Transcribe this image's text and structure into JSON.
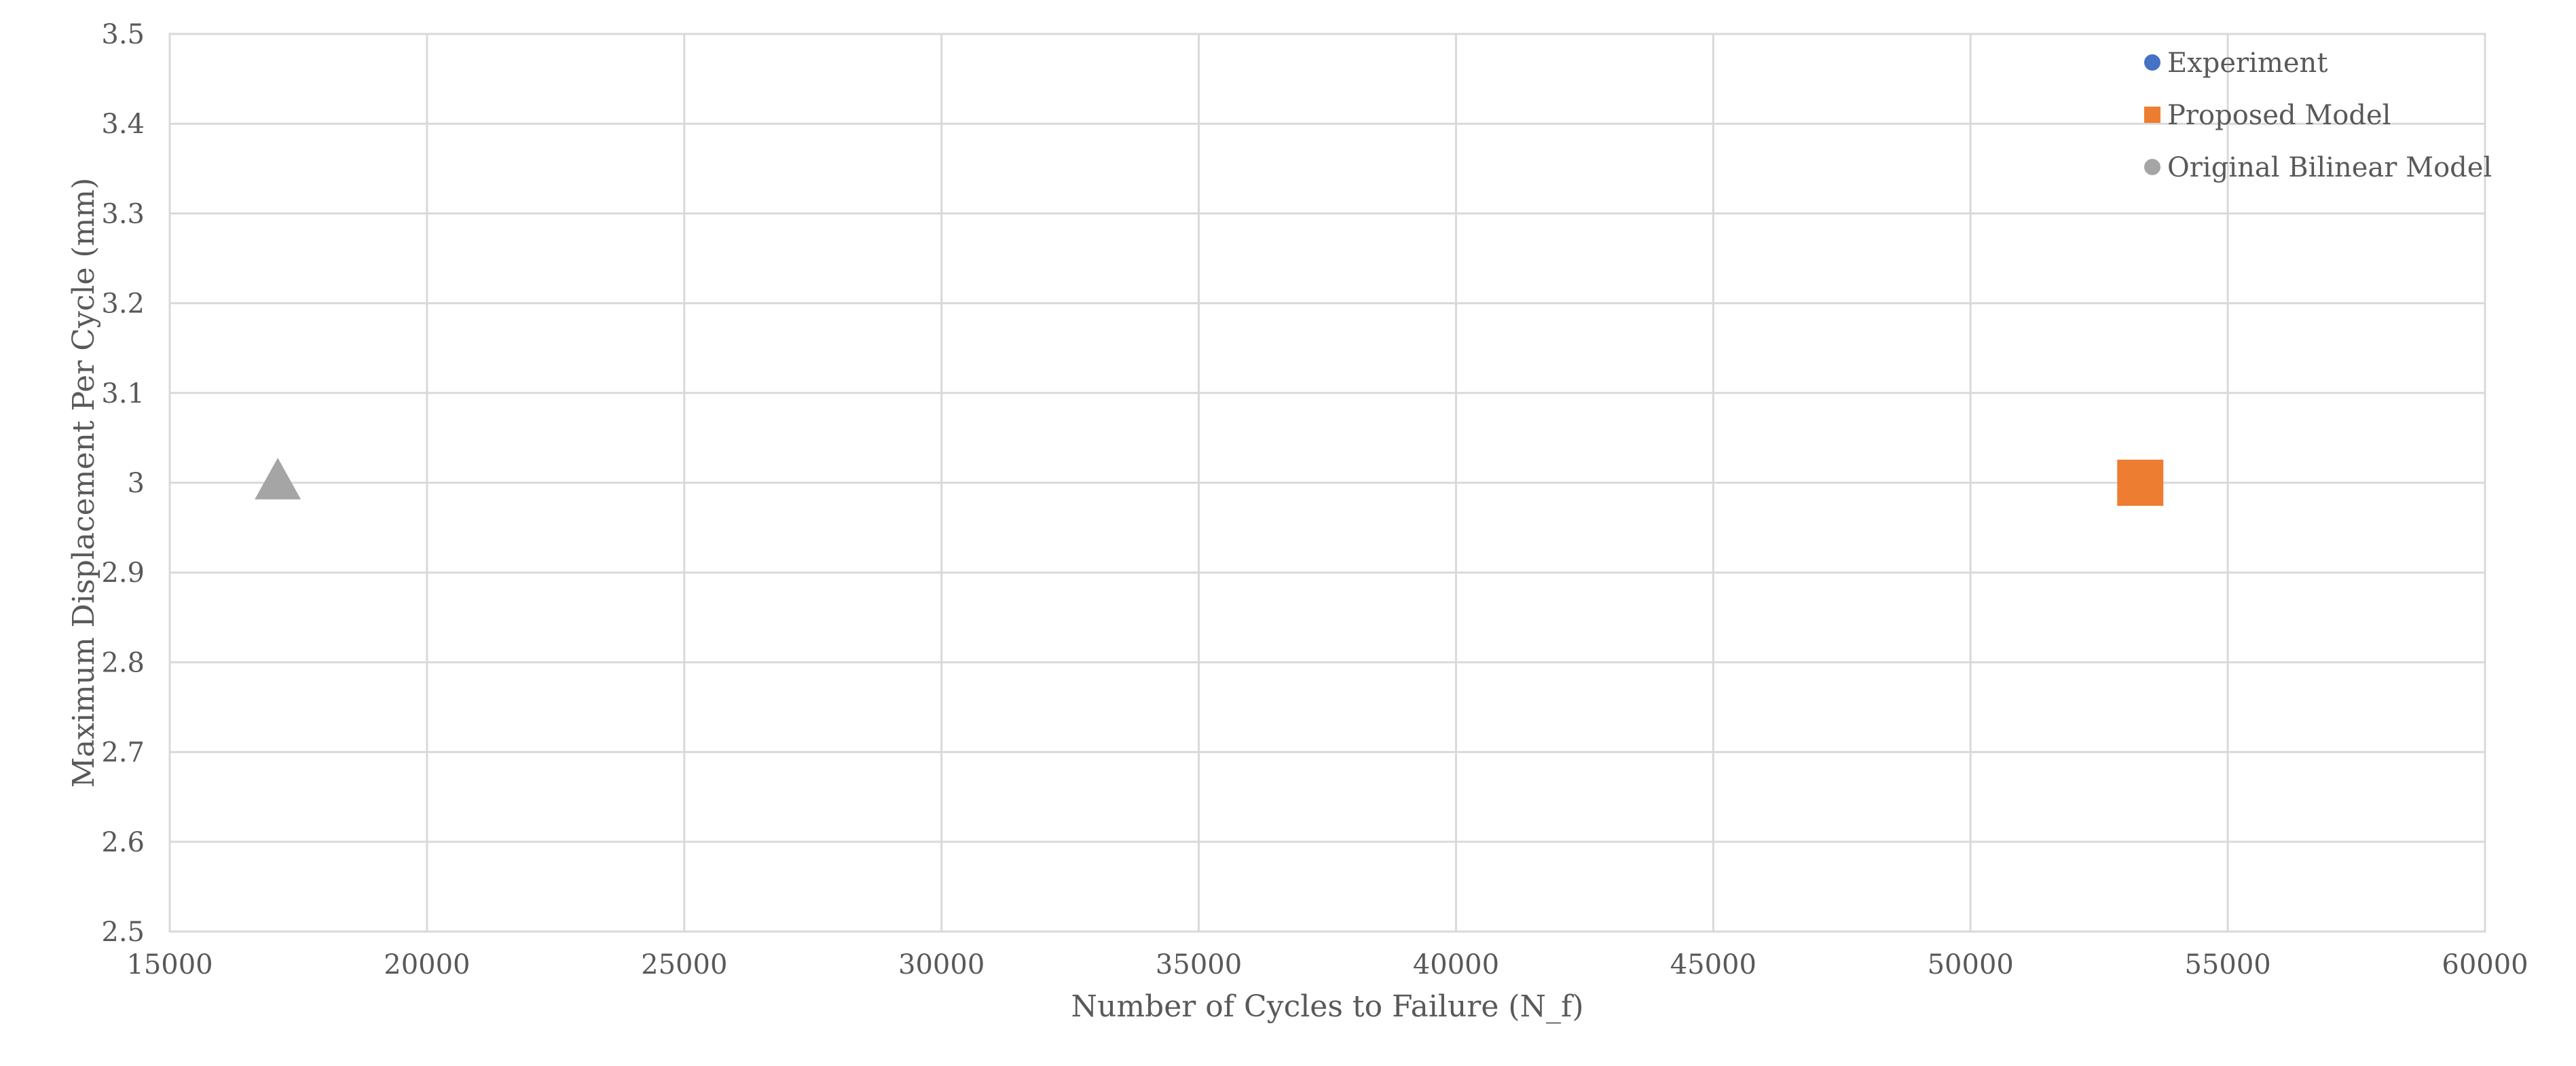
{
  "chart_data": {
    "type": "scatter",
    "title": "",
    "xlabel": "Number of Cycles to Failure (N_f)",
    "ylabel": "Maximum Displacement Per Cycle (mm)",
    "xlim": [
      15000,
      60000
    ],
    "ylim": [
      2.5,
      3.5
    ],
    "x_ticks": [
      "15000",
      "20000",
      "25000",
      "30000",
      "35000",
      "40000",
      "45000",
      "50000",
      "55000",
      "60000"
    ],
    "y_ticks": [
      "2.5",
      "2.6",
      "2.7",
      "2.8",
      "2.9",
      "3",
      "3.1",
      "3.2",
      "3.3",
      "3.4",
      "3.5"
    ],
    "grid": true,
    "legend_position": "top-right",
    "series": [
      {
        "name": "Experiment",
        "marker": "circle",
        "color": "#4472C4",
        "points": []
      },
      {
        "name": "Proposed Model",
        "marker": "square",
        "color": "#ED7D31",
        "points": [
          {
            "x": 53300,
            "y": 3.0
          }
        ]
      },
      {
        "name": "Original Bilinear Model",
        "marker": "triangle",
        "legend_marker": "circle",
        "color": "#A5A5A5",
        "points": [
          {
            "x": 17100,
            "y": 3.0
          }
        ]
      }
    ]
  }
}
